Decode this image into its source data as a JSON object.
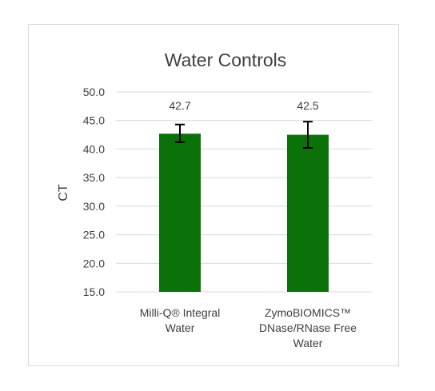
{
  "chart_data": {
    "type": "bar",
    "title": "Water Controls",
    "xlabel": "",
    "ylabel": "CT",
    "ylim": [
      15.0,
      50.0
    ],
    "yticks": [
      "15.0",
      "20.0",
      "25.0",
      "30.0",
      "35.0",
      "40.0",
      "45.0",
      "50.0"
    ],
    "grid": true,
    "legend": "none",
    "categories": [
      [
        "Milli-Q® Integral",
        "Water"
      ],
      [
        "ZymoBIOMICS™",
        "DNase/RNase Free",
        "Water"
      ]
    ],
    "values": [
      42.7,
      42.5
    ],
    "data_labels": [
      "42.7",
      "42.5"
    ],
    "error_bars": [
      {
        "low": 41.2,
        "high": 44.3
      },
      {
        "low": 40.2,
        "high": 44.8
      }
    ],
    "colors": {
      "bar": "#0b7209",
      "grid": "#d9d9d9",
      "error_bar": "#000000",
      "text": "#404040"
    }
  }
}
